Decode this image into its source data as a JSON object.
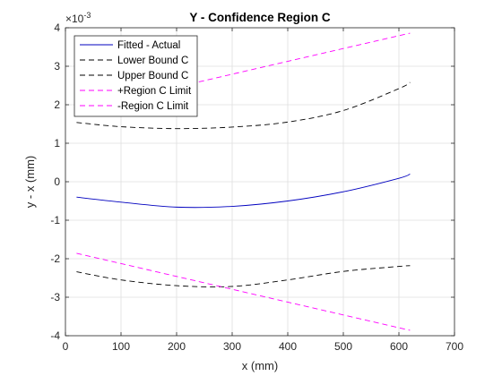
{
  "chart_data": {
    "type": "line",
    "title": "Y - Confidence Region C",
    "xlabel": "x (mm)",
    "ylabel": "y - x (mm)",
    "xlim": [
      0,
      700
    ],
    "ylim": [
      -4,
      4
    ],
    "y_scale_exponent_label": "×10",
    "y_scale_exponent_power": "-3",
    "x_ticks": [
      "0",
      "100",
      "200",
      "300",
      "400",
      "500",
      "600",
      "700"
    ],
    "y_ticks": [
      "-4",
      "-3",
      "-2",
      "-1",
      "0",
      "1",
      "2",
      "3",
      "4"
    ],
    "grid": true,
    "legend_position": "top-left",
    "series": [
      {
        "name": "Fitted - Actual",
        "color": "#0000bf",
        "style": "solid",
        "x": [
          20,
          100,
          200,
          300,
          400,
          500,
          600,
          620
        ],
        "y": [
          -0.4,
          -0.53,
          -0.66,
          -0.64,
          -0.5,
          -0.26,
          0.09,
          0.2
        ]
      },
      {
        "name": "Lower Bound C",
        "color": "#000000",
        "style": "dashed",
        "x": [
          20,
          100,
          200,
          300,
          400,
          500,
          600,
          620
        ],
        "y": [
          -2.34,
          -2.55,
          -2.7,
          -2.72,
          -2.55,
          -2.33,
          -2.2,
          -2.18
        ]
      },
      {
        "name": "Upper Bound C",
        "color": "#000000",
        "style": "dashed",
        "x": [
          20,
          100,
          200,
          300,
          400,
          500,
          600,
          620
        ],
        "y": [
          1.54,
          1.43,
          1.38,
          1.42,
          1.55,
          1.85,
          2.42,
          2.58
        ]
      },
      {
        "name": "+Region C Limit",
        "color": "#ff00ff",
        "style": "dashed",
        "x": [
          20,
          620
        ],
        "y": [
          1.86,
          3.86
        ]
      },
      {
        "name": "-Region C Limit",
        "color": "#ff00ff",
        "style": "dashed",
        "x": [
          20,
          620
        ],
        "y": [
          -1.86,
          -3.86
        ]
      }
    ]
  }
}
